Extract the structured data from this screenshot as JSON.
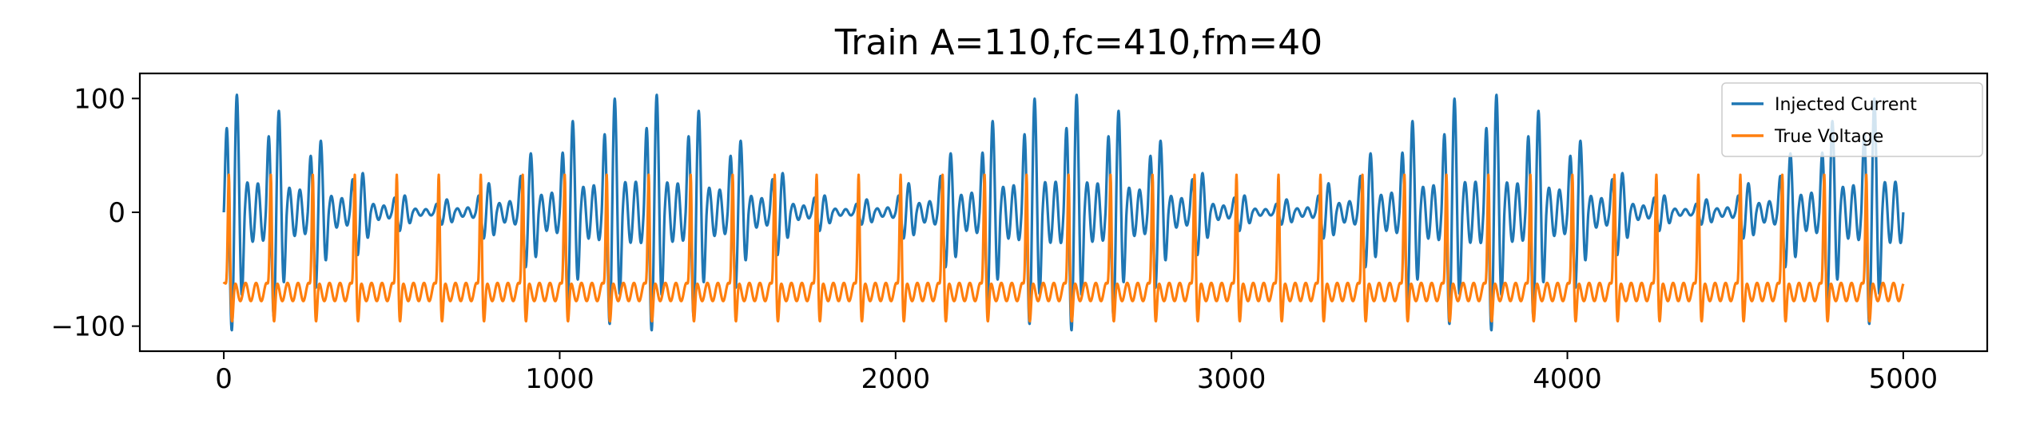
{
  "chart_data": {
    "type": "line",
    "title": "Train A=110,fc=410,fm=40",
    "xlabel": "",
    "ylabel": "",
    "xlim": [
      -250,
      5250
    ],
    "ylim": [
      -122,
      122
    ],
    "x_ticks": [
      0,
      1000,
      2000,
      3000,
      4000,
      5000
    ],
    "y_ticks": [
      -100,
      0,
      100
    ],
    "x_tick_labels": [
      "0",
      "1000",
      "2000",
      "3000",
      "4000",
      "5000"
    ],
    "y_tick_labels": [
      "−100",
      "0",
      "100"
    ],
    "grid": false,
    "legend_position": "top-right",
    "sample_count": 5001,
    "series": [
      {
        "name": "Injected Current",
        "color": "#1f77b4",
        "amplitude": 110,
        "carrier_frequency": 410,
        "modulation_frequency": 40,
        "x_range": [
          0,
          5000
        ],
        "y_range": [
          -110,
          110
        ]
      },
      {
        "name": "True Voltage",
        "color": "#ff7f0e",
        "x_range": [
          0,
          5000
        ],
        "y_range": [
          -100,
          42
        ],
        "baseline": -70,
        "spike_peak": 40,
        "spike_count": 40
      }
    ]
  }
}
